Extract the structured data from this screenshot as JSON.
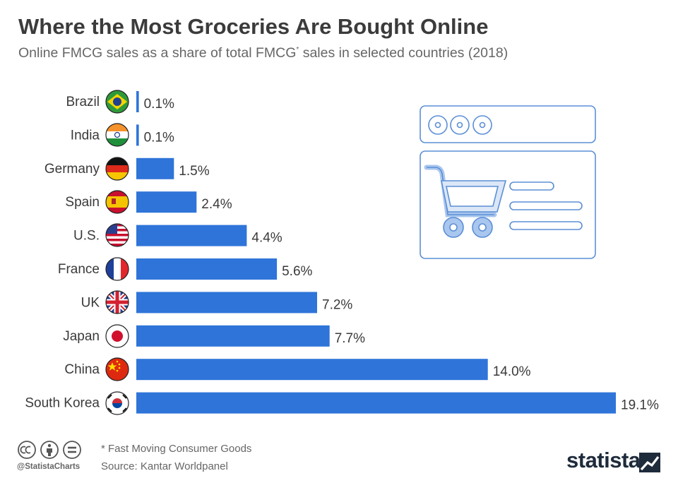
{
  "title": "Where the Most Groceries Are Bought Online",
  "subtitle": {
    "text": "Online FMCG sales as a share of total FMCG",
    "mark": "*",
    "text_after": " sales in selected countries (2018)"
  },
  "chart_data": {
    "type": "bar",
    "orientation": "horizontal",
    "categories": [
      "Brazil",
      "India",
      "Germany",
      "Spain",
      "U.S.",
      "France",
      "UK",
      "Japan",
      "China",
      "South Korea"
    ],
    "values": [
      0.1,
      0.1,
      1.5,
      2.4,
      4.4,
      5.6,
      7.2,
      7.7,
      14.0,
      19.1
    ],
    "value_labels": [
      "0.1%",
      "0.1%",
      "1.5%",
      "2.4%",
      "4.4%",
      "5.6%",
      "7.2%",
      "7.7%",
      "14.0%",
      "19.1%"
    ],
    "unit": "%",
    "xlim": [
      0,
      19.1
    ],
    "grid": false,
    "legend": "none",
    "bar_color": "#2f74d9",
    "flag_icons": [
      "brazil-flag-icon",
      "india-flag-icon",
      "germany-flag-icon",
      "spain-flag-icon",
      "us-flag-icon",
      "france-flag-icon",
      "uk-flag-icon",
      "japan-flag-icon",
      "china-flag-icon",
      "south-korea-flag-icon"
    ]
  },
  "illustration": {
    "icon": "shopping-cart-browser-icon",
    "color": "#5b8fd6"
  },
  "footer": {
    "note": "* Fast Moving Consumer Goods",
    "source": "Source: Kantar Worldpanel",
    "handle": "@StatistaCharts",
    "brand": "statista",
    "license_icons": [
      "cc-icon",
      "attribution-icon",
      "no-derivatives-icon"
    ]
  }
}
